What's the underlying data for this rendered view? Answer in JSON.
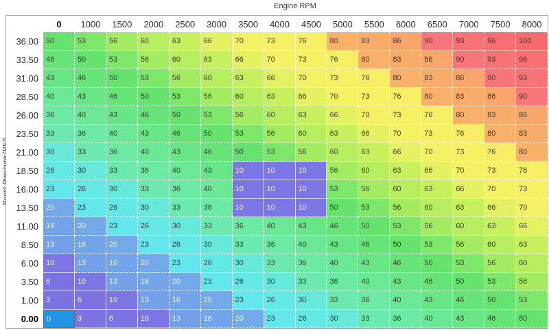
{
  "chart_data": {
    "type": "heatmap",
    "x_label": "Engine RPM",
    "y_label": "Boost Pressure (PSI)",
    "x_ticks": [
      "0",
      "1000",
      "1500",
      "2000",
      "2500",
      "3000",
      "3500",
      "4000",
      "4500",
      "5000",
      "5500",
      "6000",
      "6500",
      "7000",
      "7500",
      "8000"
    ],
    "y_ticks": [
      "36.00",
      "33.50",
      "31.00",
      "28.50",
      "26.00",
      "23.50",
      "21.00",
      "18.50",
      "16.00",
      "13.50",
      "11.00",
      "8.50",
      "6.00",
      "3.50",
      "1.00",
      "0.00"
    ],
    "rows": [
      [
        50,
        53,
        56,
        60,
        63,
        66,
        70,
        73,
        76,
        80,
        83,
        86,
        90,
        93,
        96,
        100
      ],
      [
        46,
        50,
        53,
        56,
        60,
        63,
        66,
        70,
        73,
        76,
        80,
        83,
        86,
        90,
        93,
        96
      ],
      [
        43,
        46,
        50,
        53,
        56,
        60,
        63,
        66,
        70,
        73,
        76,
        80,
        83,
        86,
        90,
        93
      ],
      [
        40,
        43,
        46,
        50,
        53,
        56,
        60,
        63,
        66,
        70,
        73,
        76,
        80,
        83,
        86,
        90
      ],
      [
        36,
        40,
        43,
        46,
        50,
        53,
        56,
        60,
        63,
        66,
        70,
        73,
        76,
        80,
        83,
        86
      ],
      [
        33,
        36,
        40,
        43,
        46,
        50,
        53,
        56,
        60,
        63,
        66,
        70,
        73,
        76,
        80,
        83
      ],
      [
        30,
        33,
        36,
        40,
        43,
        46,
        50,
        53,
        56,
        60,
        63,
        66,
        70,
        73,
        76,
        80
      ],
      [
        26,
        30,
        33,
        36,
        40,
        43,
        10,
        10,
        10,
        56,
        60,
        63,
        66,
        70,
        73,
        76
      ],
      [
        23,
        26,
        30,
        33,
        36,
        40,
        10,
        10,
        10,
        53,
        56,
        60,
        63,
        66,
        70,
        73
      ],
      [
        20,
        23,
        26,
        30,
        33,
        36,
        10,
        10,
        10,
        50,
        53,
        56,
        60,
        63,
        66,
        70
      ],
      [
        16,
        20,
        23,
        26,
        30,
        33,
        36,
        40,
        43,
        46,
        50,
        53,
        56,
        60,
        63,
        66
      ],
      [
        13,
        16,
        20,
        23,
        26,
        30,
        33,
        36,
        40,
        43,
        46,
        50,
        53,
        56,
        60,
        63
      ],
      [
        10,
        13,
        16,
        20,
        23,
        26,
        30,
        33,
        36,
        40,
        43,
        46,
        50,
        53,
        56,
        60
      ],
      [
        6,
        10,
        13,
        16,
        20,
        23,
        26,
        30,
        33,
        36,
        40,
        43,
        46,
        50,
        53,
        56
      ],
      [
        3,
        6,
        10,
        13,
        16,
        20,
        23,
        26,
        30,
        33,
        36,
        40,
        43,
        46,
        50,
        53
      ],
      [
        0,
        3,
        6,
        10,
        13,
        16,
        20,
        23,
        26,
        30,
        33,
        36,
        40,
        43,
        46,
        50
      ]
    ],
    "selected": {
      "row_label": "0.00",
      "col_label": "0",
      "row_index": 15,
      "col_index": 0,
      "value": 0
    }
  },
  "style": {
    "selection_fill": "#2295e9",
    "selection_border": "#6f685d",
    "light_text_color": "#f2f4fd",
    "dark_text_color": "#3b3b3b",
    "light_text_max": 20,
    "solid_border_max": 10,
    "value_colors": {
      "0": "#7c74e6",
      "3": "#7b72e3",
      "6": "#7b73e3",
      "10": "#7c76e5",
      "13": "#73a0e9",
      "16": "#72a4e9",
      "20": "#73a9e9",
      "23": "#64e7ec",
      "26": "#64e8e6",
      "30": "#66e9da",
      "33": "#6ce9ae",
      "36": "#6ce9a2",
      "40": "#6ae895",
      "43": "#68e686",
      "46": "#67e478",
      "50": "#66e36e",
      "53": "#7de76a",
      "56": "#a3ec62",
      "60": "#b6ee5f",
      "63": "#c7f05e",
      "66": "#e3f162",
      "70": "#f4f164",
      "73": "#f6f065",
      "76": "#f7ee66",
      "80": "#f9b069",
      "83": "#f9ab6a",
      "86": "#f9a56b",
      "90": "#f87679",
      "93": "#f87276",
      "96": "#f86e72",
      "100": "#f86a6e"
    }
  }
}
